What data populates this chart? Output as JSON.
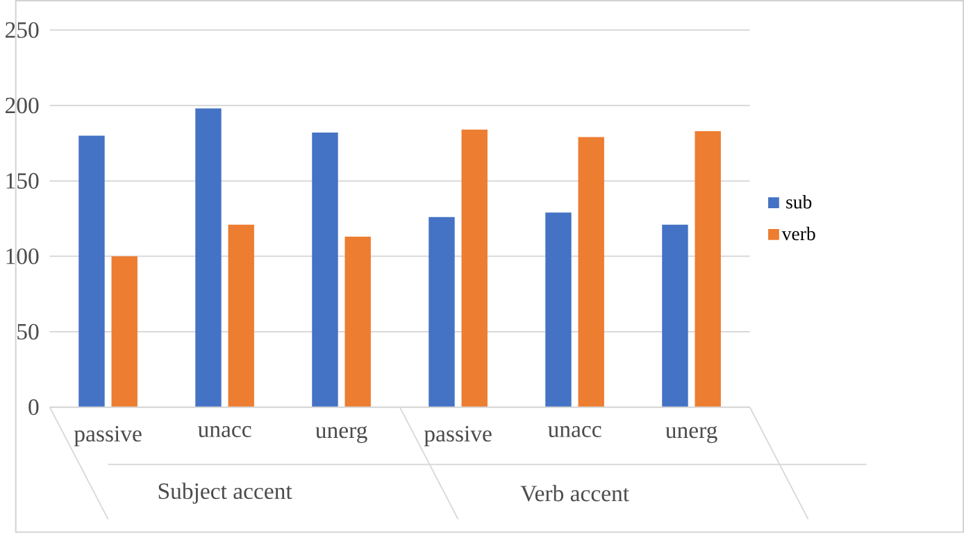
{
  "chart_data": {
    "type": "bar",
    "categories": [
      "passive",
      "unacc",
      "unerg",
      "passive",
      "unacc",
      "unerg"
    ],
    "series": [
      {
        "name": "sub",
        "color": "#4472c4",
        "values": [
          180,
          198,
          182,
          126,
          129,
          121
        ]
      },
      {
        "name": "verb",
        "color": "#ed7d31",
        "values": [
          100,
          121,
          113,
          184,
          179,
          183
        ]
      }
    ],
    "annotations": [
      "Subject accent",
      "Verb accent"
    ],
    "ylim": [
      0,
      250
    ],
    "yticks": [
      0,
      50,
      100,
      150,
      200,
      250
    ],
    "grid": "y",
    "legend": "right"
  }
}
